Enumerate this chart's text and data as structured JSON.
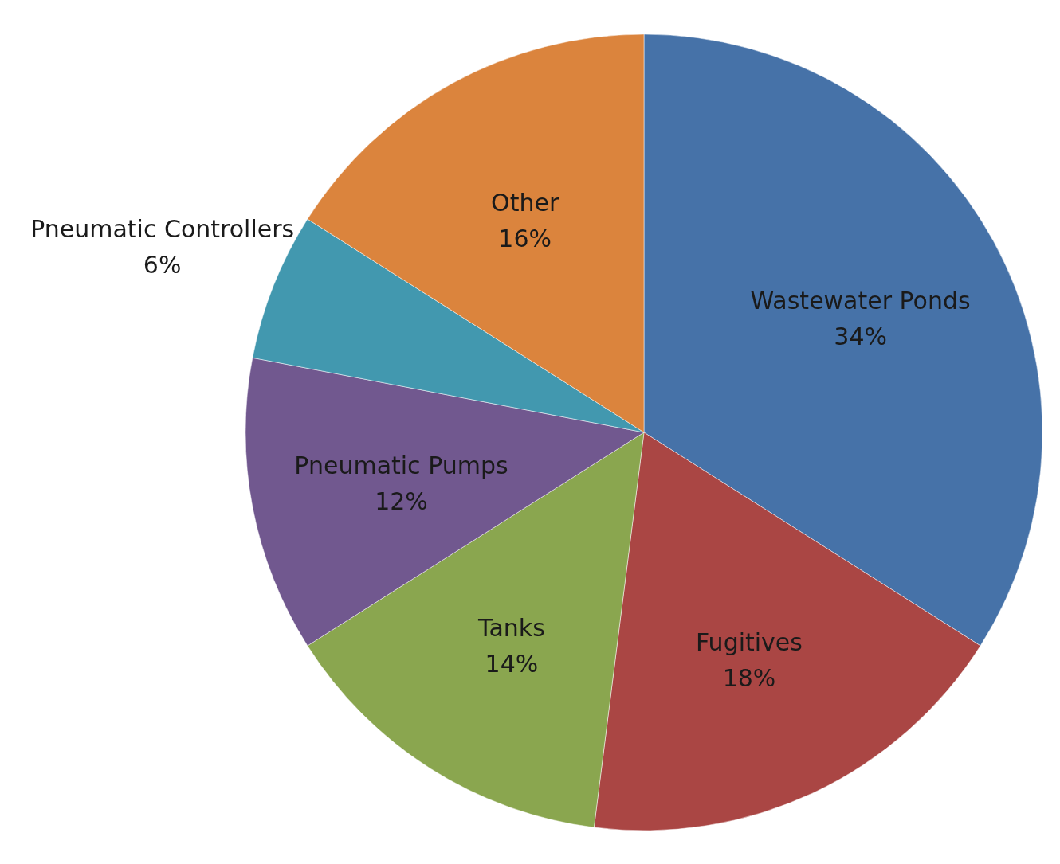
{
  "chart_data": {
    "type": "pie",
    "categories": [
      "Wastewater Ponds",
      "Fugitives",
      "Tanks",
      "Pneumatic Pumps",
      "Pneumatic Controllers",
      "Other"
    ],
    "values": [
      34,
      18,
      14,
      12,
      6,
      16
    ],
    "colors": [
      "#4672a8",
      "#aa4644",
      "#8aa64f",
      "#71588f",
      "#4298af",
      "#db843d"
    ],
    "value_labels": [
      "34%",
      "18%",
      "14%",
      "12%",
      "6%",
      "16%"
    ]
  }
}
